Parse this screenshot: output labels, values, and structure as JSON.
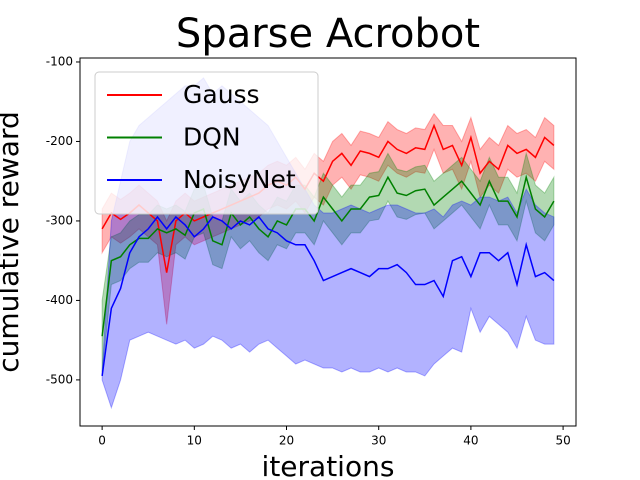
{
  "chart_data": {
    "type": "line",
    "title": "Sparse Acrobot",
    "xlabel": "iterations",
    "ylabel": "cumulative reward",
    "x": [
      0,
      1,
      2,
      3,
      4,
      5,
      6,
      7,
      8,
      9,
      10,
      11,
      12,
      13,
      14,
      15,
      16,
      17,
      18,
      19,
      20,
      21,
      22,
      23,
      24,
      25,
      26,
      27,
      28,
      29,
      30,
      31,
      32,
      33,
      34,
      35,
      36,
      37,
      38,
      39,
      40,
      41,
      42,
      43,
      44,
      45,
      46,
      47,
      48,
      49
    ],
    "xlim": [
      -2.4,
      51.4
    ],
    "xticks": [
      0,
      10,
      20,
      30,
      40,
      50
    ],
    "ylim": [
      -558,
      -95
    ],
    "yticks": [
      -500,
      -400,
      -300,
      -200,
      -100
    ],
    "legend": "upper left",
    "series": [
      {
        "name": "Gauss",
        "color": "#ff0000",
        "values": [
          -310,
          -290,
          -298,
          -290,
          -280,
          -290,
          -300,
          -365,
          -300,
          -290,
          -300,
          -295,
          -290,
          -285,
          -280,
          -275,
          -270,
          -265,
          -255,
          -250,
          -255,
          -245,
          -260,
          -240,
          -250,
          -225,
          -215,
          -230,
          -212,
          -215,
          -220,
          -200,
          -210,
          -215,
          -208,
          -210,
          -180,
          -210,
          -205,
          -230,
          -195,
          -240,
          -225,
          -235,
          -205,
          -215,
          -210,
          -220,
          -195,
          -205
        ],
        "upper": [
          -285,
          -265,
          -273,
          -265,
          -255,
          -265,
          -275,
          -300,
          -275,
          -265,
          -275,
          -270,
          -265,
          -260,
          -255,
          -250,
          -245,
          -240,
          -230,
          -225,
          -230,
          -220,
          -235,
          -215,
          -225,
          -200,
          -190,
          -205,
          -187,
          -190,
          -195,
          -175,
          -185,
          -190,
          -183,
          -185,
          -165,
          -180,
          -180,
          -200,
          -170,
          -210,
          -195,
          -205,
          -180,
          -190,
          -185,
          -195,
          -170,
          -180
        ],
        "lower": [
          -340,
          -320,
          -328,
          -320,
          -310,
          -320,
          -330,
          -430,
          -330,
          -320,
          -330,
          -325,
          -320,
          -315,
          -310,
          -305,
          -300,
          -295,
          -285,
          -280,
          -285,
          -275,
          -290,
          -270,
          -280,
          -255,
          -245,
          -260,
          -242,
          -245,
          -250,
          -230,
          -240,
          -245,
          -238,
          -240,
          -210,
          -240,
          -235,
          -260,
          -225,
          -270,
          -255,
          -265,
          -235,
          -245,
          -240,
          -250,
          -225,
          -235
        ]
      },
      {
        "name": "DQN",
        "color": "#008000",
        "values": [
          -445,
          -350,
          -345,
          -330,
          -322,
          -322,
          -310,
          -315,
          -310,
          -318,
          -290,
          -285,
          -325,
          -330,
          -290,
          -305,
          -295,
          -310,
          -320,
          -300,
          -305,
          -285,
          -285,
          -300,
          -270,
          -285,
          -300,
          -285,
          -285,
          -270,
          -268,
          -245,
          -265,
          -268,
          -262,
          -260,
          -280,
          -270,
          -260,
          -250,
          -265,
          -280,
          -250,
          -275,
          -275,
          -295,
          -245,
          -285,
          -295,
          -275
        ],
        "upper": [
          -400,
          -320,
          -315,
          -300,
          -292,
          -292,
          -280,
          -285,
          -280,
          -288,
          -260,
          -255,
          -295,
          -300,
          -260,
          -275,
          -265,
          -280,
          -290,
          -270,
          -275,
          -255,
          -255,
          -270,
          -240,
          -255,
          -270,
          -255,
          -255,
          -240,
          -238,
          -215,
          -235,
          -238,
          -232,
          -230,
          -250,
          -240,
          -230,
          -220,
          -235,
          -250,
          -220,
          -245,
          -245,
          -265,
          -215,
          -255,
          -265,
          -245
        ],
        "lower": [
          -490,
          -380,
          -375,
          -360,
          -352,
          -352,
          -340,
          -345,
          -340,
          -348,
          -320,
          -315,
          -355,
          -360,
          -320,
          -335,
          -325,
          -340,
          -350,
          -330,
          -335,
          -315,
          -315,
          -330,
          -300,
          -315,
          -330,
          -315,
          -315,
          -300,
          -298,
          -275,
          -295,
          -298,
          -292,
          -290,
          -310,
          -300,
          -290,
          -280,
          -295,
          -310,
          -280,
          -305,
          -305,
          -325,
          -275,
          -315,
          -325,
          -305
        ]
      },
      {
        "name": "NoisyNet",
        "color": "#0000ff",
        "values": [
          -495,
          -410,
          -385,
          -340,
          -320,
          -310,
          -295,
          -310,
          -295,
          -305,
          -320,
          -310,
          -295,
          -300,
          -310,
          -300,
          -305,
          -295,
          -310,
          -315,
          -325,
          -330,
          -330,
          -350,
          -375,
          -370,
          -365,
          -360,
          -365,
          -370,
          -360,
          -360,
          -355,
          -365,
          -380,
          -380,
          -375,
          -395,
          -350,
          -345,
          -370,
          -340,
          -340,
          -350,
          -340,
          -380,
          -330,
          -370,
          -365,
          -375
        ],
        "upper": [
          -490,
          -300,
          -250,
          -200,
          -180,
          -170,
          -160,
          -150,
          -140,
          -130,
          -130,
          -120,
          -140,
          -130,
          -140,
          -150,
          -160,
          -170,
          -180,
          -200,
          -220,
          -240,
          -260,
          -280,
          -290,
          -290,
          -285,
          -280,
          -285,
          -290,
          -285,
          -280,
          -280,
          -285,
          -290,
          -290,
          -285,
          -295,
          -280,
          -275,
          -280,
          -270,
          -270,
          -275,
          -270,
          -290,
          -260,
          -280,
          -290,
          -295
        ],
        "lower": [
          -500,
          -535,
          -500,
          -450,
          -445,
          -440,
          -445,
          -450,
          -455,
          -450,
          -460,
          -455,
          -445,
          -450,
          -460,
          -455,
          -465,
          -455,
          -450,
          -460,
          -470,
          -480,
          -475,
          -480,
          -485,
          -485,
          -490,
          -485,
          -490,
          -490,
          -485,
          -490,
          -485,
          -490,
          -490,
          -495,
          -480,
          -470,
          -460,
          -465,
          -410,
          -440,
          -420,
          -430,
          -440,
          -460,
          -420,
          -450,
          -455,
          -455
        ]
      }
    ]
  }
}
